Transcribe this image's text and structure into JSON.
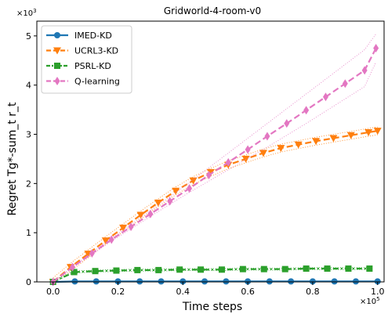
{
  "chart_data": {
    "type": "line",
    "title": "Gridworld-4-room-v0",
    "xlabel": "Time steps",
    "ylabel": "Regret Tg*-sum_t r_t",
    "x_multiplier": "×10",
    "x_multiplier_exp": "5",
    "y_multiplier": "×10",
    "y_multiplier_exp": "3",
    "xlim": [
      -0.05,
      1.02
    ],
    "ylim": [
      0,
      5.3
    ],
    "xticks": [
      0.0,
      0.2,
      0.4,
      0.6,
      0.8,
      1.0
    ],
    "xtick_labels": [
      "0.0",
      "0.2",
      "0.4",
      "0.6",
      "0.8",
      "1.0"
    ],
    "yticks": [
      0,
      1,
      2,
      3,
      4,
      5
    ],
    "ytick_labels": [
      "0",
      "1",
      "2",
      "3",
      "4",
      "5"
    ],
    "grid": false,
    "legend_position": "top-left",
    "series": [
      {
        "name": "IMED-KD",
        "color": "#1f77b4",
        "marker": "circle",
        "dash": "solid",
        "x": [
          0.0,
          0.067,
          0.133,
          0.2,
          0.267,
          0.333,
          0.4,
          0.467,
          0.533,
          0.6,
          0.667,
          0.733,
          0.8,
          0.867,
          0.933,
          1.0
        ],
        "y": [
          0.0,
          0.01,
          0.01,
          0.01,
          0.01,
          0.01,
          0.01,
          0.01,
          0.01,
          0.01,
          0.01,
          0.01,
          0.01,
          0.01,
          0.01,
          0.01
        ],
        "band": 0.0
      },
      {
        "name": "UCRL3-KD",
        "color": "#ff7f0e",
        "marker": "triangle-down",
        "dash": "dashed",
        "x": [
          0.0,
          0.054,
          0.108,
          0.162,
          0.216,
          0.27,
          0.324,
          0.378,
          0.432,
          0.486,
          0.54,
          0.594,
          0.648,
          0.702,
          0.756,
          0.81,
          0.864,
          0.918,
          0.972,
          1.0
        ],
        "y": [
          0.0,
          0.3,
          0.57,
          0.84,
          1.1,
          1.36,
          1.61,
          1.85,
          2.06,
          2.23,
          2.38,
          2.5,
          2.62,
          2.72,
          2.79,
          2.86,
          2.92,
          2.98,
          3.04,
          3.07
        ],
        "band": 0.08
      },
      {
        "name": "PSRL-KD",
        "color": "#2ca02c",
        "marker": "square",
        "dash": "dashdot",
        "x": [
          0.0,
          0.065,
          0.13,
          0.195,
          0.26,
          0.325,
          0.39,
          0.455,
          0.52,
          0.585,
          0.65,
          0.715,
          0.78,
          0.845,
          0.91,
          0.975
        ],
        "y": [
          0.0,
          0.2,
          0.22,
          0.23,
          0.24,
          0.24,
          0.25,
          0.25,
          0.25,
          0.26,
          0.26,
          0.26,
          0.27,
          0.27,
          0.27,
          0.27
        ],
        "band": 0.02
      },
      {
        "name": "Q-learning",
        "color": "#e377c2",
        "marker": "diamond",
        "dash": "dashed",
        "x": [
          0.0,
          0.06,
          0.12,
          0.18,
          0.24,
          0.3,
          0.36,
          0.42,
          0.48,
          0.54,
          0.6,
          0.66,
          0.72,
          0.78,
          0.84,
          0.9,
          0.96,
          0.995
        ],
        "y": [
          0.0,
          0.3,
          0.58,
          0.86,
          1.12,
          1.38,
          1.64,
          1.9,
          2.17,
          2.43,
          2.69,
          2.96,
          3.22,
          3.49,
          3.76,
          4.03,
          4.3,
          4.75
        ],
        "band_lo": [
          0.0,
          0.29,
          0.56,
          0.83,
          1.08,
          1.33,
          1.58,
          1.82,
          2.05,
          2.28,
          2.51,
          2.74,
          2.98,
          3.22,
          3.47,
          3.72,
          3.97,
          4.47
        ],
        "band_hi": [
          0.0,
          0.31,
          0.6,
          0.89,
          1.17,
          1.45,
          1.73,
          2.02,
          2.32,
          2.62,
          2.92,
          3.22,
          3.52,
          3.82,
          4.12,
          4.42,
          4.72,
          5.04
        ]
      }
    ]
  }
}
